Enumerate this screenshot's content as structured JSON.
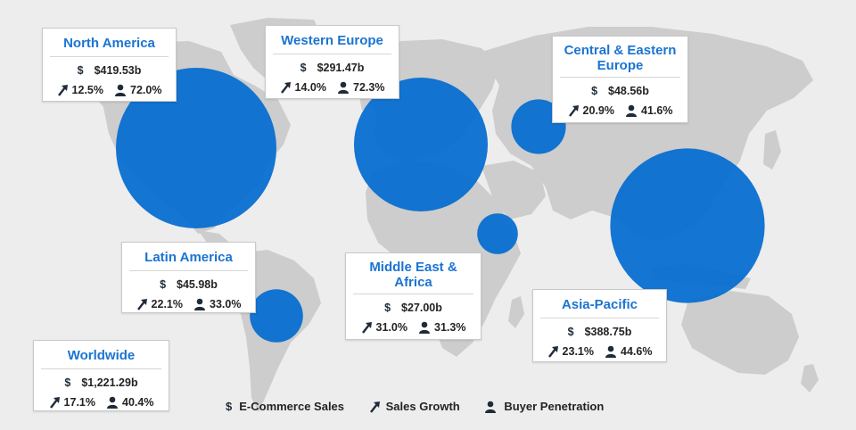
{
  "colors": {
    "background": "#ededed",
    "land": "#cdcdcd",
    "bubble": "#0a6fd0",
    "title": "#1b74d2",
    "text": "#232323"
  },
  "icons": {
    "sales": "dollar-icon",
    "growth": "trend-arrow-icon",
    "penetration": "person-icon"
  },
  "regions": [
    {
      "id": "north-america",
      "name": "North America",
      "sales": "$419.53b",
      "growth": "12.5%",
      "penetration": "72.0%",
      "sales_value_bn": 419.53
    },
    {
      "id": "western-europe",
      "name": "Western Europe",
      "sales": "$291.47b",
      "growth": "14.0%",
      "penetration": "72.3%",
      "sales_value_bn": 291.47
    },
    {
      "id": "central-eastern-europe",
      "name": "Central & Eastern Europe",
      "sales": "$48.56b",
      "growth": "20.9%",
      "penetration": "41.6%",
      "sales_value_bn": 48.56
    },
    {
      "id": "latin-america",
      "name": "Latin America",
      "sales": "$45.98b",
      "growth": "22.1%",
      "penetration": "33.0%",
      "sales_value_bn": 45.98
    },
    {
      "id": "middle-east-africa",
      "name": "Middle East & Africa",
      "sales": "$27.00b",
      "growth": "31.0%",
      "penetration": "31.3%",
      "sales_value_bn": 27.0
    },
    {
      "id": "asia-pacific",
      "name": "Asia-Pacific",
      "sales": "$388.75b",
      "growth": "23.1%",
      "penetration": "44.6%",
      "sales_value_bn": 388.75
    }
  ],
  "worldwide": {
    "name": "Worldwide",
    "sales": "$1,221.29b",
    "growth": "17.1%",
    "penetration": "40.4%"
  },
  "legend": {
    "sales": "E-Commerce Sales",
    "growth": "Sales Growth",
    "penetration": "Buyer Penetration"
  }
}
